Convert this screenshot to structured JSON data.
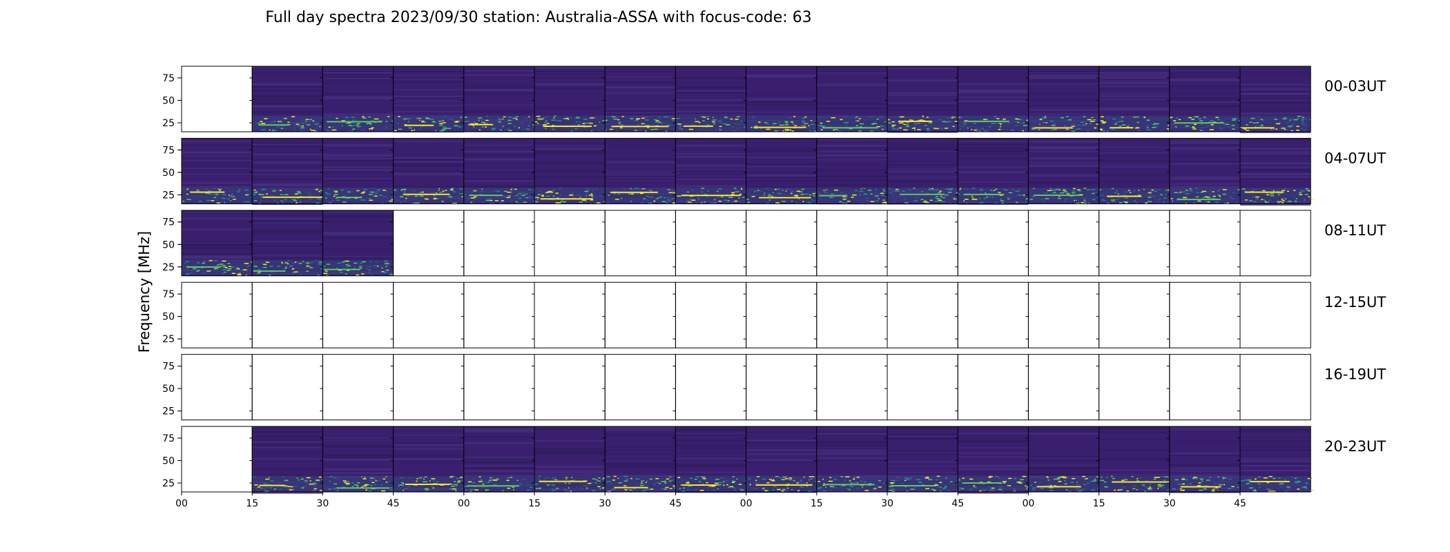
{
  "chart_data": {
    "type": "heatmap",
    "title": "Full day spectra 2023/09/30 station: Australia-ASSA with focus-code: 63",
    "ylabel": "Frequency [MHz]",
    "xlabel": "",
    "y_ticks": [
      25,
      50,
      75
    ],
    "ylim": [
      15,
      88
    ],
    "x_ticks": [
      "00",
      "15",
      "30",
      "45",
      "00",
      "15",
      "30",
      "45",
      "00",
      "15",
      "30",
      "45",
      "00",
      "15",
      "30",
      "45"
    ],
    "x_tick_positions": [
      0,
      1,
      2,
      3,
      4,
      5,
      6,
      7,
      8,
      9,
      10,
      11,
      12,
      13,
      14,
      15
    ],
    "panels_per_row": 16,
    "minutes_per_panel": 15,
    "colormap": [
      "#440154",
      "#3b528b",
      "#21918c",
      "#5ec962",
      "#fde725"
    ],
    "grid": false,
    "rows": [
      {
        "label": "00-03UT",
        "has_data": [
          false,
          true,
          true,
          true,
          true,
          true,
          true,
          true,
          true,
          true,
          true,
          true,
          true,
          true,
          true,
          true
        ]
      },
      {
        "label": "04-07UT",
        "has_data": [
          true,
          true,
          true,
          true,
          true,
          true,
          true,
          true,
          true,
          true,
          true,
          true,
          true,
          true,
          true,
          true
        ]
      },
      {
        "label": "08-11UT",
        "has_data": [
          true,
          true,
          true,
          false,
          false,
          false,
          false,
          false,
          false,
          false,
          false,
          false,
          false,
          false,
          false,
          false
        ]
      },
      {
        "label": "12-15UT",
        "has_data": [
          false,
          false,
          false,
          false,
          false,
          false,
          false,
          false,
          false,
          false,
          false,
          false,
          false,
          false,
          false,
          false
        ]
      },
      {
        "label": "16-19UT",
        "has_data": [
          false,
          false,
          false,
          false,
          false,
          false,
          false,
          false,
          false,
          false,
          false,
          false,
          false,
          false,
          false,
          false
        ]
      },
      {
        "label": "20-23UT",
        "has_data": [
          false,
          true,
          true,
          true,
          true,
          true,
          true,
          true,
          true,
          true,
          true,
          true,
          true,
          true,
          true,
          true
        ]
      }
    ]
  }
}
